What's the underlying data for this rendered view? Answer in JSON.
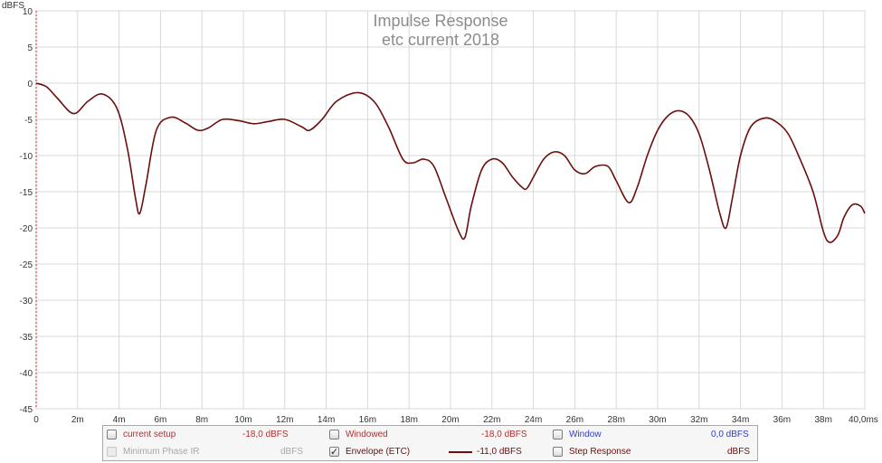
{
  "chart_data": {
    "type": "line",
    "title": "Impulse Response",
    "subtitle": "etc current 2018",
    "ylabel": "dBFS",
    "xlabel": "",
    "xlim": [
      0,
      40
    ],
    "ylim": [
      -45,
      10
    ],
    "grid": true,
    "x_ticks": [
      "0",
      "2m",
      "4m",
      "6m",
      "8m",
      "10m",
      "12m",
      "14m",
      "16m",
      "18m",
      "20m",
      "22m",
      "24m",
      "26m",
      "28m",
      "30m",
      "32m",
      "34m",
      "36m",
      "38m",
      "40,0ms"
    ],
    "y_ticks": [
      "10",
      "5",
      "0",
      "-5",
      "-10",
      "-15",
      "-20",
      "-25",
      "-30",
      "-35",
      "-40",
      "-45"
    ],
    "series": [
      {
        "name": "Envelope (ETC)",
        "color": "#6b0e0e",
        "x": [
          0,
          0.5,
          1.0,
          1.8,
          2.5,
          3.2,
          3.9,
          4.4,
          4.8,
          5.0,
          5.3,
          5.8,
          6.5,
          7.2,
          7.8,
          8.3,
          9.0,
          9.8,
          10.5,
          11.2,
          12.0,
          12.8,
          13.2,
          13.8,
          14.5,
          15.5,
          16.3,
          17.0,
          17.7,
          18.2,
          18.7,
          19.2,
          19.8,
          20.4,
          20.7,
          21.0,
          21.5,
          22.0,
          22.5,
          23.0,
          23.5,
          23.7,
          24.0,
          24.5,
          25.0,
          25.5,
          26.0,
          26.5,
          27.0,
          27.6,
          28.0,
          28.6,
          29.0,
          29.5,
          30.0,
          30.5,
          31.0,
          31.5,
          32.0,
          32.5,
          33.0,
          33.3,
          33.6,
          34.0,
          34.5,
          35.2,
          35.8,
          36.3,
          36.8,
          37.5,
          38.0,
          38.3,
          38.7,
          39.0,
          39.4,
          39.8,
          40.0
        ],
        "y": [
          0,
          -0.5,
          -2.0,
          -4.2,
          -2.5,
          -1.5,
          -3.5,
          -9.0,
          -16.0,
          -18.0,
          -14.0,
          -6.5,
          -4.7,
          -5.5,
          -6.5,
          -6.2,
          -5.0,
          -5.2,
          -5.6,
          -5.3,
          -5.0,
          -6.0,
          -6.5,
          -5.0,
          -2.5,
          -1.3,
          -2.5,
          -6.0,
          -10.5,
          -11.0,
          -10.5,
          -11.5,
          -16.0,
          -20.5,
          -21.3,
          -17.0,
          -12.0,
          -10.5,
          -11.0,
          -13.0,
          -14.5,
          -14.5,
          -13.0,
          -10.5,
          -9.5,
          -10.0,
          -12.0,
          -12.5,
          -11.5,
          -11.5,
          -13.5,
          -16.5,
          -14.5,
          -10.0,
          -6.5,
          -4.5,
          -3.8,
          -4.5,
          -7.0,
          -12.0,
          -18.0,
          -20.0,
          -16.0,
          -10.0,
          -6.0,
          -4.8,
          -5.5,
          -7.0,
          -10.0,
          -15.0,
          -20.5,
          -22.0,
          -21.0,
          -18.5,
          -16.8,
          -17.0,
          -18.0
        ]
      }
    ]
  },
  "legend": {
    "items": [
      {
        "label": "current setup",
        "value": "-18,0 dBFS",
        "checked": false,
        "color": "#b03030"
      },
      {
        "label": "Windowed",
        "value": "-18,0 dBFS",
        "checked": false,
        "color": "#b03030"
      },
      {
        "label": "Window",
        "value": "0,0 dBFS",
        "checked": false,
        "color": "#2f3fc0"
      },
      {
        "label": "Minimum Phase IR",
        "value": "dBFS",
        "checked": false,
        "disabled": true,
        "color": "#a8a8a8"
      },
      {
        "label": "Envelope (ETC)",
        "value": "-11,0 dBFS",
        "checked": true,
        "color": "#6b0e0e"
      },
      {
        "label": "Step Response",
        "value": "dBFS",
        "checked": false,
        "color": "#6b0e0e"
      }
    ]
  }
}
